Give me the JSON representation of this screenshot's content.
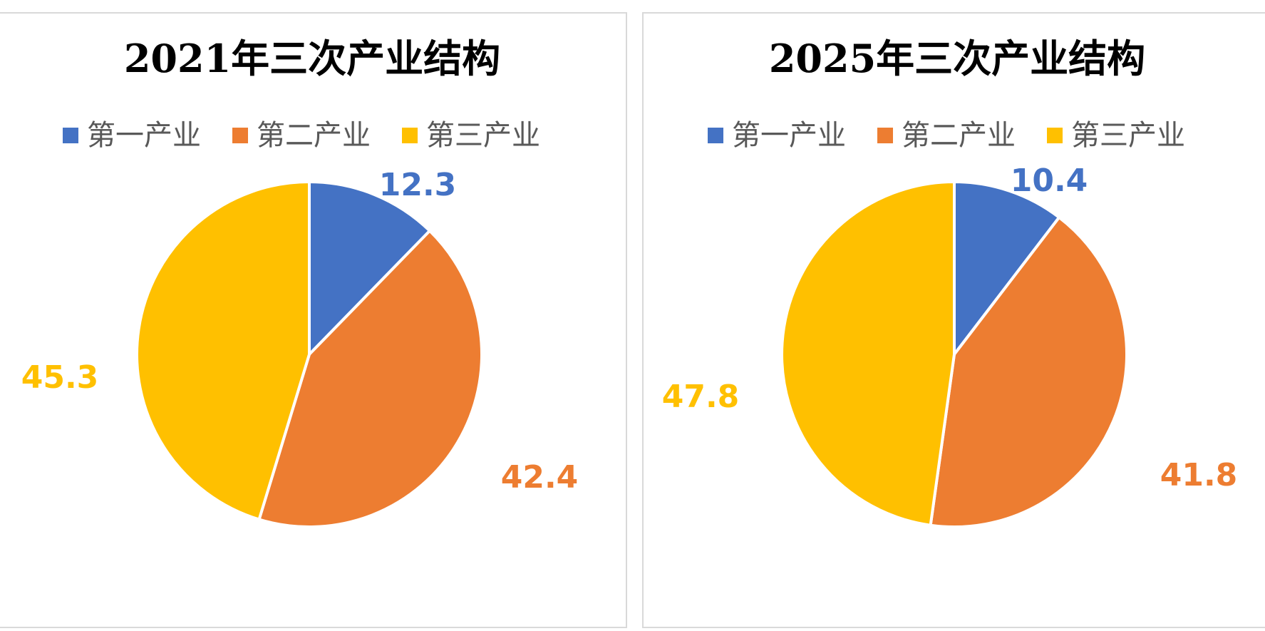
{
  "chart_data": [
    {
      "type": "pie",
      "title": "2021年三次产业结构",
      "categories": [
        "第一产业",
        "第二产业",
        "第三产业"
      ],
      "values": [
        12.3,
        42.4,
        45.3
      ],
      "colors": [
        "#4472C4",
        "#ED7D31",
        "#FFC000"
      ],
      "legend": "top",
      "data_labels": [
        "12.3",
        "42.4",
        "45.3"
      ]
    },
    {
      "type": "pie",
      "title": "2025年三次产业结构",
      "categories": [
        "第一产业",
        "第二产业",
        "第三产业"
      ],
      "values": [
        10.4,
        41.8,
        47.8
      ],
      "colors": [
        "#4472C4",
        "#ED7D31",
        "#FFC000"
      ],
      "legend": "top",
      "data_labels": [
        "10.4",
        "41.8",
        "47.8"
      ]
    }
  ]
}
